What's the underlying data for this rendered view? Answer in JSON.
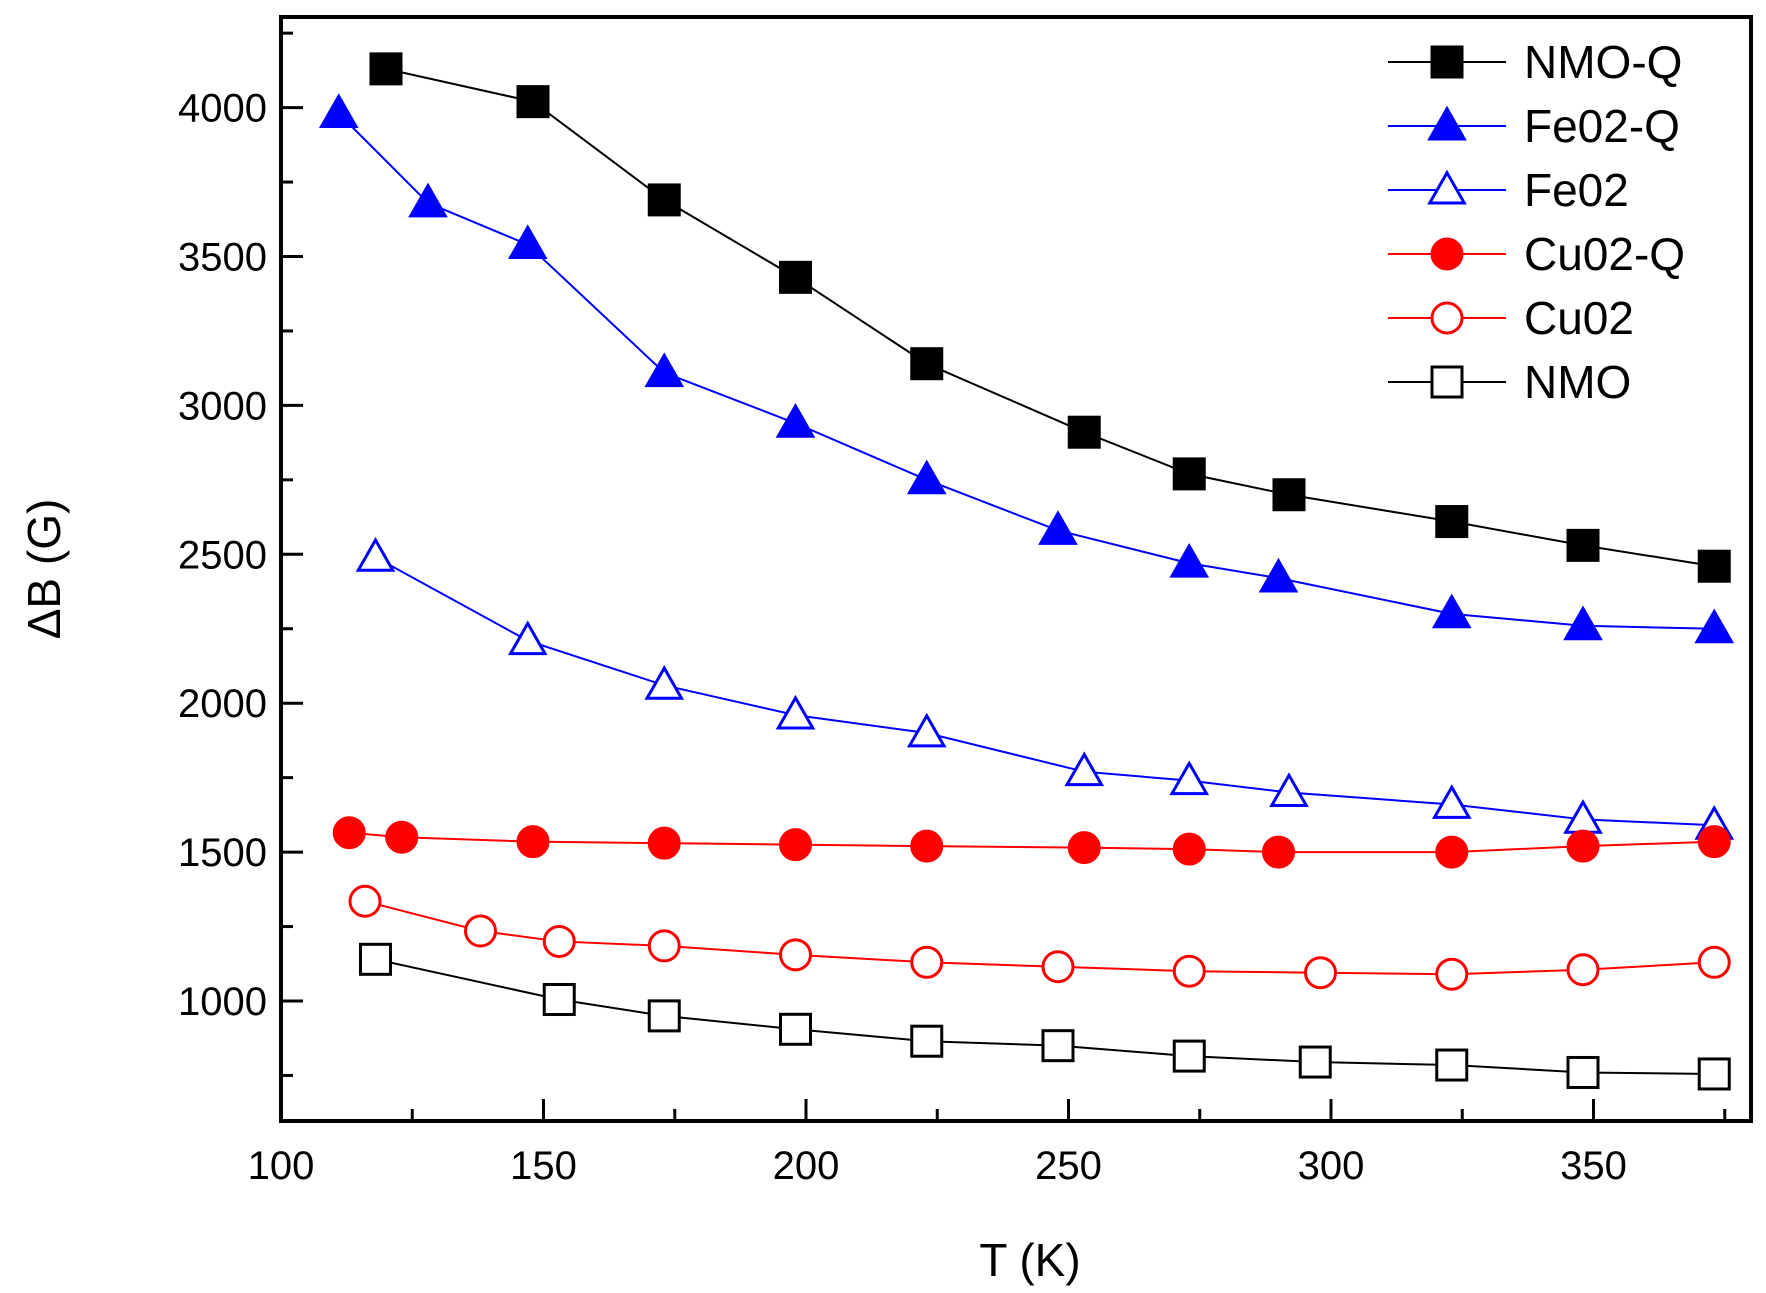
{
  "chart_data": {
    "type": "line",
    "title": "",
    "xlabel": "T (K)",
    "ylabel": "ΔB (G)",
    "xlim": [
      100,
      380
    ],
    "ylim": [
      600,
      4300
    ],
    "xticks": [
      100,
      150,
      200,
      250,
      300,
      350
    ],
    "xticks_minor": [
      125,
      175,
      225,
      275,
      325,
      375
    ],
    "yticks": [
      1000,
      1500,
      2000,
      2500,
      3000,
      3500,
      4000
    ],
    "yticks_minor": [
      750,
      1250,
      1750,
      2250,
      2750,
      3250,
      3750,
      4250
    ],
    "grid": false,
    "legend_position": "top-right",
    "series": [
      {
        "name": "NMO-Q",
        "color": "#000000",
        "marker": "square",
        "filled": true,
        "x": [
          120,
          148,
          173,
          198,
          223,
          253,
          273,
          292,
          323,
          348,
          373
        ],
        "y": [
          4130,
          4020,
          3690,
          3430,
          3140,
          2910,
          2770,
          2700,
          2610,
          2530,
          2460
        ]
      },
      {
        "name": "Fe02-Q",
        "color": "#0000ff",
        "marker": "triangle",
        "filled": true,
        "x": [
          111,
          128,
          147,
          173,
          198,
          223,
          248,
          273,
          290,
          323,
          348,
          373
        ],
        "y": [
          3980,
          3680,
          3540,
          3110,
          2940,
          2750,
          2580,
          2470,
          2420,
          2300,
          2260,
          2250
        ]
      },
      {
        "name": "Fe02",
        "color": "#0000ff",
        "marker": "triangle",
        "filled": false,
        "x": [
          118,
          147,
          173,
          198,
          223,
          253,
          273,
          292,
          323,
          348,
          373
        ],
        "y": [
          2490,
          2210,
          2060,
          1960,
          1900,
          1770,
          1740,
          1700,
          1660,
          1610,
          1590
        ]
      },
      {
        "name": "Cu02-Q",
        "color": "#ff0000",
        "marker": "circle",
        "filled": true,
        "x": [
          113,
          123,
          148,
          173,
          198,
          223,
          253,
          273,
          290,
          323,
          348,
          373
        ],
        "y": [
          1565,
          1550,
          1535,
          1530,
          1525,
          1520,
          1515,
          1510,
          1500,
          1500,
          1520,
          1535
        ]
      },
      {
        "name": "Cu02",
        "color": "#ff0000",
        "marker": "circle",
        "filled": false,
        "x": [
          116,
          138,
          153,
          173,
          198,
          223,
          248,
          273,
          298,
          323,
          348,
          373
        ],
        "y": [
          1335,
          1235,
          1200,
          1185,
          1155,
          1130,
          1115,
          1100,
          1095,
          1090,
          1105,
          1130
        ]
      },
      {
        "name": "NMO",
        "color": "#000000",
        "marker": "square",
        "filled": false,
        "x": [
          118,
          153,
          173,
          198,
          223,
          248,
          273,
          297,
          323,
          348,
          373
        ],
        "y": [
          1140,
          1005,
          950,
          905,
          865,
          850,
          815,
          795,
          785,
          760,
          755
        ]
      }
    ]
  }
}
